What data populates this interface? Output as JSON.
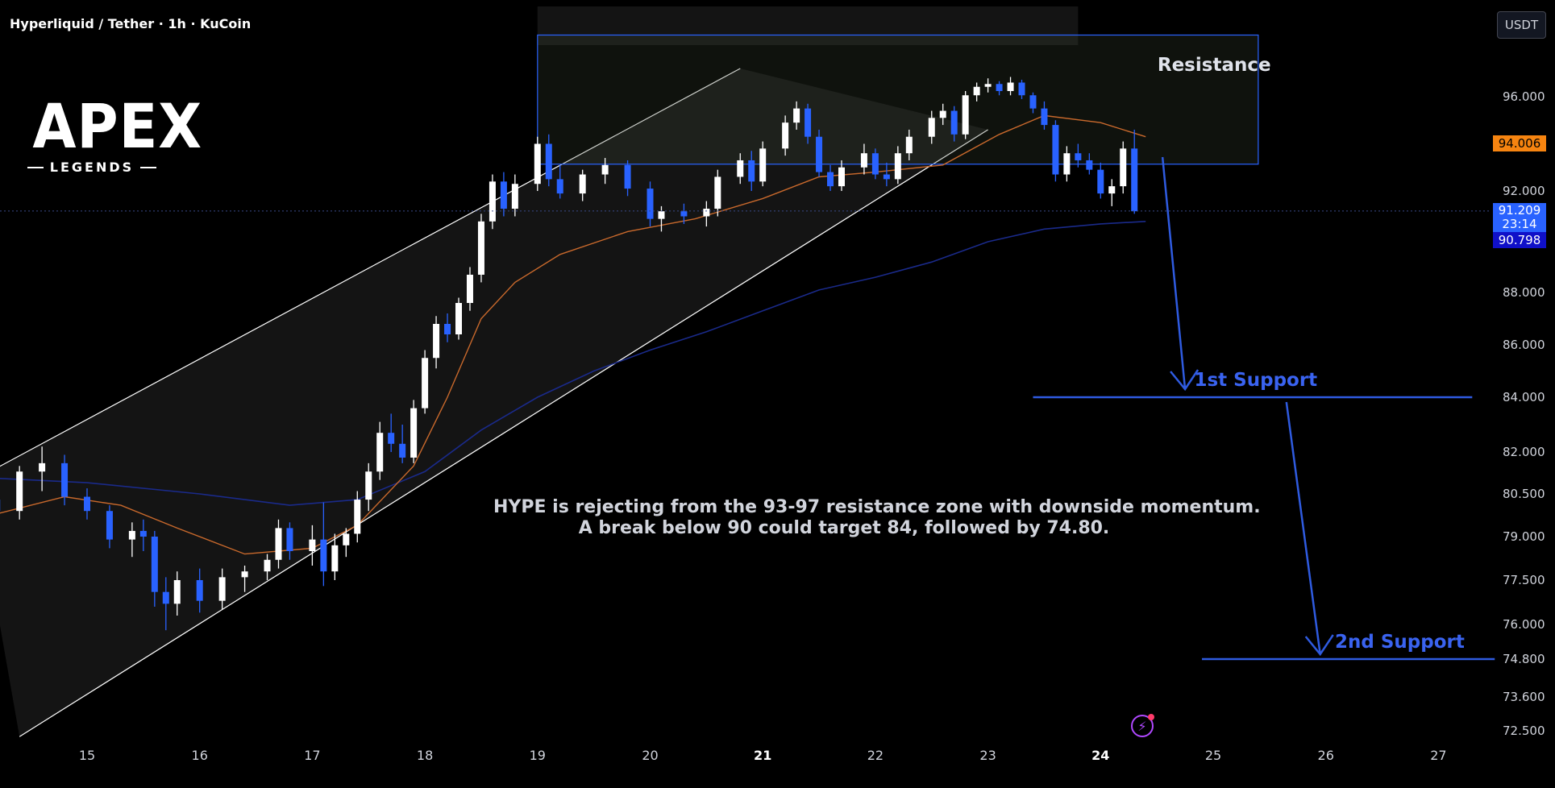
{
  "header": {
    "symbol_line": "Hyperliquid / Tether · 1h · KuCoin"
  },
  "currency_button": "USDT",
  "logo": {
    "main": "APEX",
    "sub": "LEGENDS"
  },
  "annotation": {
    "line1": "HYPE is rejecting from the 93-97 resistance zone with downside momentum.",
    "line2": "A break below 90 could target 84, followed by 74.80."
  },
  "alert_icon": "alert-bolt-icon",
  "colors": {
    "bull_candle": "#ffffff",
    "bear_candle": "#2962ff",
    "ma_fast": "#c9692c",
    "ma_slow": "#1a2a8a",
    "channel": "#ffffff",
    "zone_border": "#2962ff",
    "support_line": "#2f5be0",
    "price_tag_current": "#2962ff",
    "price_tag_ma": "#1010c8",
    "price_tag_high": "#f68410"
  },
  "chart_data": {
    "type": "candlestick",
    "title": "",
    "x_ticks": [
      "15",
      "16",
      "17",
      "18",
      "19",
      "20",
      "21",
      "22",
      "23",
      "24",
      "25",
      "26",
      "27"
    ],
    "bold_x_ticks": [
      "21",
      "24"
    ],
    "y_ticks": [
      "96.000",
      "94.006",
      "92.000",
      "91.209",
      "90.798",
      "88.000",
      "86.000",
      "84.000",
      "82.000",
      "80.500",
      "79.000",
      "77.500",
      "76.000",
      "74.800",
      "73.600",
      "72.500"
    ],
    "ylim": [
      72.0,
      98.0
    ],
    "price_tags": {
      "high": {
        "value": "94.006"
      },
      "current": {
        "value": "91.209",
        "countdown": "23:14"
      },
      "ma": {
        "value": "90.798"
      }
    },
    "resistance_zone": {
      "label": "Resistance",
      "low": 93.0,
      "high": 97.0,
      "x_start": 19.0,
      "x_end": 25.4
    },
    "supports": [
      {
        "label": "1st Support",
        "value": 84.0,
        "x_start": 23.4,
        "x_end": 27.3
      },
      {
        "label": "2nd Support",
        "value": 74.8,
        "x_start": 24.9,
        "x_end": 27.5
      }
    ],
    "channel": {
      "upper": [
        [
          14.0,
          81.0
        ],
        [
          20.8,
          98.5
        ]
      ],
      "lower": [
        [
          14.4,
          72.3
        ],
        [
          23.0,
          94.6
        ]
      ]
    },
    "ma_fast": [
      [
        14.0,
        79.6
      ],
      [
        14.8,
        80.4
      ],
      [
        15.3,
        80.1
      ],
      [
        15.8,
        79.3
      ],
      [
        16.4,
        78.4
      ],
      [
        17.0,
        78.6
      ],
      [
        17.4,
        79.4
      ],
      [
        17.9,
        81.5
      ],
      [
        18.2,
        84.0
      ],
      [
        18.5,
        87.0
      ],
      [
        18.8,
        88.4
      ],
      [
        19.2,
        89.5
      ],
      [
        19.8,
        90.4
      ],
      [
        20.4,
        90.9
      ],
      [
        21.0,
        91.7
      ],
      [
        21.5,
        92.6
      ],
      [
        22.0,
        92.8
      ],
      [
        22.6,
        93.1
      ],
      [
        23.1,
        94.4
      ],
      [
        23.5,
        95.2
      ],
      [
        24.0,
        94.9
      ],
      [
        24.4,
        94.3
      ]
    ],
    "ma_slow": [
      [
        14.0,
        81.1
      ],
      [
        15.0,
        80.9
      ],
      [
        16.0,
        80.5
      ],
      [
        16.8,
        80.1
      ],
      [
        17.4,
        80.3
      ],
      [
        18.0,
        81.3
      ],
      [
        18.5,
        82.8
      ],
      [
        19.0,
        84.0
      ],
      [
        19.5,
        85.0
      ],
      [
        20.0,
        85.8
      ],
      [
        20.5,
        86.5
      ],
      [
        21.0,
        87.3
      ],
      [
        21.5,
        88.1
      ],
      [
        22.0,
        88.6
      ],
      [
        22.5,
        89.2
      ],
      [
        23.0,
        90.0
      ],
      [
        23.5,
        90.5
      ],
      [
        24.0,
        90.7
      ],
      [
        24.4,
        90.8
      ]
    ],
    "candles": [
      {
        "t": 14.0,
        "o": 79.6,
        "h": 80.5,
        "l": 79.1,
        "c": 80.3
      },
      {
        "t": 14.2,
        "o": 80.3,
        "h": 80.9,
        "l": 79.8,
        "c": 79.9
      },
      {
        "t": 14.4,
        "o": 79.9,
        "h": 81.5,
        "l": 79.6,
        "c": 81.3
      },
      {
        "t": 14.6,
        "o": 81.3,
        "h": 82.2,
        "l": 80.6,
        "c": 81.6
      },
      {
        "t": 14.8,
        "o": 81.6,
        "h": 81.9,
        "l": 80.1,
        "c": 80.4
      },
      {
        "t": 15.0,
        "o": 80.4,
        "h": 80.7,
        "l": 79.6,
        "c": 79.9
      },
      {
        "t": 15.2,
        "o": 79.9,
        "h": 80.1,
        "l": 78.6,
        "c": 78.9
      },
      {
        "t": 15.4,
        "o": 78.9,
        "h": 79.5,
        "l": 78.3,
        "c": 79.2
      },
      {
        "t": 15.5,
        "o": 79.2,
        "h": 79.6,
        "l": 78.5,
        "c": 79.0
      },
      {
        "t": 15.6,
        "o": 79.0,
        "h": 79.2,
        "l": 76.6,
        "c": 77.1
      },
      {
        "t": 15.7,
        "o": 77.1,
        "h": 77.6,
        "l": 75.8,
        "c": 76.7
      },
      {
        "t": 15.8,
        "o": 76.7,
        "h": 77.8,
        "l": 76.3,
        "c": 77.5
      },
      {
        "t": 16.0,
        "o": 77.5,
        "h": 77.9,
        "l": 76.4,
        "c": 76.8
      },
      {
        "t": 16.2,
        "o": 76.8,
        "h": 77.9,
        "l": 76.5,
        "c": 77.6
      },
      {
        "t": 16.4,
        "o": 77.6,
        "h": 78.0,
        "l": 77.1,
        "c": 77.8
      },
      {
        "t": 16.6,
        "o": 77.8,
        "h": 78.4,
        "l": 77.5,
        "c": 78.2
      },
      {
        "t": 16.7,
        "o": 78.2,
        "h": 79.6,
        "l": 77.9,
        "c": 79.3
      },
      {
        "t": 16.8,
        "o": 79.3,
        "h": 79.5,
        "l": 78.2,
        "c": 78.5
      },
      {
        "t": 17.0,
        "o": 78.5,
        "h": 79.4,
        "l": 78.0,
        "c": 78.9
      },
      {
        "t": 17.1,
        "o": 78.9,
        "h": 80.2,
        "l": 77.3,
        "c": 77.8
      },
      {
        "t": 17.2,
        "o": 77.8,
        "h": 79.1,
        "l": 77.5,
        "c": 78.7
      },
      {
        "t": 17.3,
        "o": 78.7,
        "h": 79.3,
        "l": 78.3,
        "c": 79.1
      },
      {
        "t": 17.4,
        "o": 79.1,
        "h": 80.6,
        "l": 78.8,
        "c": 80.3
      },
      {
        "t": 17.5,
        "o": 80.3,
        "h": 81.6,
        "l": 79.9,
        "c": 81.3
      },
      {
        "t": 17.6,
        "o": 81.3,
        "h": 83.1,
        "l": 81.0,
        "c": 82.7
      },
      {
        "t": 17.7,
        "o": 82.7,
        "h": 83.4,
        "l": 82.0,
        "c": 82.3
      },
      {
        "t": 17.8,
        "o": 82.3,
        "h": 83.0,
        "l": 81.6,
        "c": 81.8
      },
      {
        "t": 17.9,
        "o": 81.8,
        "h": 83.9,
        "l": 81.6,
        "c": 83.6
      },
      {
        "t": 18.0,
        "o": 83.6,
        "h": 85.8,
        "l": 83.4,
        "c": 85.5
      },
      {
        "t": 18.1,
        "o": 85.5,
        "h": 87.1,
        "l": 85.1,
        "c": 86.8
      },
      {
        "t": 18.2,
        "o": 86.8,
        "h": 87.2,
        "l": 86.1,
        "c": 86.4
      },
      {
        "t": 18.3,
        "o": 86.4,
        "h": 87.8,
        "l": 86.2,
        "c": 87.6
      },
      {
        "t": 18.4,
        "o": 87.6,
        "h": 89.0,
        "l": 87.3,
        "c": 88.7
      },
      {
        "t": 18.5,
        "o": 88.7,
        "h": 91.1,
        "l": 88.4,
        "c": 90.8
      },
      {
        "t": 18.6,
        "o": 90.8,
        "h": 92.7,
        "l": 90.5,
        "c": 92.4
      },
      {
        "t": 18.7,
        "o": 92.4,
        "h": 92.8,
        "l": 91.0,
        "c": 91.3
      },
      {
        "t": 18.8,
        "o": 91.3,
        "h": 92.7,
        "l": 91.0,
        "c": 92.3
      },
      {
        "t": 19.0,
        "o": 92.3,
        "h": 94.3,
        "l": 92.0,
        "c": 94.0
      },
      {
        "t": 19.1,
        "o": 94.0,
        "h": 94.4,
        "l": 92.2,
        "c": 92.5
      },
      {
        "t": 19.2,
        "o": 92.5,
        "h": 93.1,
        "l": 91.7,
        "c": 91.9
      },
      {
        "t": 19.4,
        "o": 91.9,
        "h": 92.9,
        "l": 91.6,
        "c": 92.7
      },
      {
        "t": 19.6,
        "o": 92.7,
        "h": 93.4,
        "l": 92.3,
        "c": 93.1
      },
      {
        "t": 19.8,
        "o": 93.1,
        "h": 93.3,
        "l": 91.8,
        "c": 92.1
      },
      {
        "t": 20.0,
        "o": 92.1,
        "h": 92.4,
        "l": 90.6,
        "c": 90.9
      },
      {
        "t": 20.1,
        "o": 90.9,
        "h": 91.4,
        "l": 90.4,
        "c": 91.2
      },
      {
        "t": 20.3,
        "o": 91.2,
        "h": 91.5,
        "l": 90.7,
        "c": 91.0
      },
      {
        "t": 20.5,
        "o": 91.0,
        "h": 91.6,
        "l": 90.6,
        "c": 91.3
      },
      {
        "t": 20.6,
        "o": 91.3,
        "h": 92.9,
        "l": 91.0,
        "c": 92.6
      },
      {
        "t": 20.8,
        "o": 92.6,
        "h": 93.6,
        "l": 92.3,
        "c": 93.3
      },
      {
        "t": 20.9,
        "o": 93.3,
        "h": 93.7,
        "l": 92.0,
        "c": 92.4
      },
      {
        "t": 21.0,
        "o": 92.4,
        "h": 94.1,
        "l": 92.2,
        "c": 93.8
      },
      {
        "t": 21.2,
        "o": 93.8,
        "h": 95.2,
        "l": 93.5,
        "c": 94.9
      },
      {
        "t": 21.3,
        "o": 94.9,
        "h": 95.8,
        "l": 94.6,
        "c": 95.5
      },
      {
        "t": 21.4,
        "o": 95.5,
        "h": 95.7,
        "l": 94.0,
        "c": 94.3
      },
      {
        "t": 21.5,
        "o": 94.3,
        "h": 94.6,
        "l": 92.6,
        "c": 92.8
      },
      {
        "t": 21.6,
        "o": 92.8,
        "h": 93.1,
        "l": 92.0,
        "c": 92.2
      },
      {
        "t": 21.7,
        "o": 92.2,
        "h": 93.3,
        "l": 92.0,
        "c": 93.0
      },
      {
        "t": 21.9,
        "o": 93.0,
        "h": 94.0,
        "l": 92.7,
        "c": 93.6
      },
      {
        "t": 22.0,
        "o": 93.6,
        "h": 93.8,
        "l": 92.5,
        "c": 92.7
      },
      {
        "t": 22.1,
        "o": 92.7,
        "h": 93.2,
        "l": 92.2,
        "c": 92.5
      },
      {
        "t": 22.2,
        "o": 92.5,
        "h": 93.9,
        "l": 92.3,
        "c": 93.6
      },
      {
        "t": 22.3,
        "o": 93.6,
        "h": 94.6,
        "l": 93.3,
        "c": 94.3
      },
      {
        "t": 22.5,
        "o": 94.3,
        "h": 95.4,
        "l": 94.0,
        "c": 95.1
      },
      {
        "t": 22.6,
        "o": 95.1,
        "h": 95.7,
        "l": 94.8,
        "c": 95.4
      },
      {
        "t": 22.7,
        "o": 95.4,
        "h": 95.6,
        "l": 94.1,
        "c": 94.4
      },
      {
        "t": 22.8,
        "o": 94.4,
        "h": 96.4,
        "l": 94.2,
        "c": 96.1
      },
      {
        "t": 22.9,
        "o": 96.1,
        "h": 97.0,
        "l": 95.8,
        "c": 96.7
      },
      {
        "t": 23.0,
        "o": 96.7,
        "h": 97.3,
        "l": 96.3,
        "c": 96.9
      },
      {
        "t": 23.1,
        "o": 96.9,
        "h": 97.1,
        "l": 96.1,
        "c": 96.4
      },
      {
        "t": 23.2,
        "o": 96.4,
        "h": 97.4,
        "l": 96.1,
        "c": 97.0
      },
      {
        "t": 23.3,
        "o": 97.0,
        "h": 97.2,
        "l": 95.9,
        "c": 96.1
      },
      {
        "t": 23.4,
        "o": 96.1,
        "h": 96.3,
        "l": 95.3,
        "c": 95.5
      },
      {
        "t": 23.5,
        "o": 95.5,
        "h": 95.8,
        "l": 94.6,
        "c": 94.8
      },
      {
        "t": 23.6,
        "o": 94.8,
        "h": 95.0,
        "l": 92.4,
        "c": 92.7
      },
      {
        "t": 23.7,
        "o": 92.7,
        "h": 93.9,
        "l": 92.4,
        "c": 93.6
      },
      {
        "t": 23.8,
        "o": 93.6,
        "h": 94.0,
        "l": 93.0,
        "c": 93.3
      },
      {
        "t": 23.9,
        "o": 93.3,
        "h": 93.6,
        "l": 92.7,
        "c": 92.9
      },
      {
        "t": 24.0,
        "o": 92.9,
        "h": 93.2,
        "l": 91.7,
        "c": 91.9
      },
      {
        "t": 24.1,
        "o": 91.9,
        "h": 92.5,
        "l": 91.4,
        "c": 92.2
      },
      {
        "t": 24.2,
        "o": 92.2,
        "h": 94.1,
        "l": 91.9,
        "c": 93.8
      },
      {
        "t": 24.3,
        "o": 93.8,
        "h": 94.6,
        "l": 91.1,
        "c": 91.2
      }
    ]
  }
}
